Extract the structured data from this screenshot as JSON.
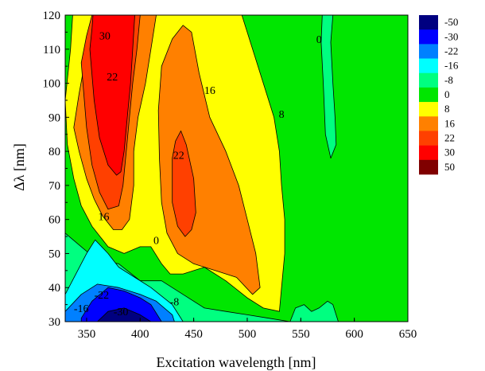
{
  "chart_data": {
    "type": "contour",
    "xlabel": "Excitation wavelength [nm]",
    "ylabel": "Δλ [nm]",
    "xlim": [
      330,
      650
    ],
    "ylim": [
      30,
      120
    ],
    "x_ticks": [
      350,
      400,
      450,
      500,
      550,
      600,
      650
    ],
    "y_ticks": [
      30,
      40,
      50,
      60,
      70,
      80,
      90,
      100,
      110,
      120
    ],
    "legend": {
      "placement": "right",
      "levels": [
        {
          "label": "-50",
          "color": "#000080"
        },
        {
          "label": "-30",
          "color": "#0000ff"
        },
        {
          "label": "-22",
          "color": "#0080ff"
        },
        {
          "label": "-16",
          "color": "#00ffff"
        },
        {
          "label": "-8",
          "color": "#00ff80"
        },
        {
          "label": "0",
          "color": "#00e600"
        },
        {
          "label": "8",
          "color": "#ffff00"
        },
        {
          "label": "16",
          "color": "#ff8000"
        },
        {
          "label": "22",
          "color": "#ff4000"
        },
        {
          "label": "30",
          "color": "#ff0000"
        },
        {
          "label": "50",
          "color": "#800000"
        }
      ]
    },
    "regions": [
      {
        "level": "0",
        "color": "#00e600",
        "points": [
          [
            330,
            120
          ],
          [
            650,
            120
          ],
          [
            650,
            30
          ],
          [
            330,
            30
          ]
        ]
      },
      {
        "level": "-8",
        "color": "#00ff80",
        "points": [
          [
            330,
            56
          ],
          [
            345,
            52
          ],
          [
            360,
            48
          ],
          [
            380,
            47
          ],
          [
            400,
            42
          ],
          [
            420,
            42
          ],
          [
            440,
            38
          ],
          [
            460,
            34
          ],
          [
            480,
            33
          ],
          [
            500,
            32
          ],
          [
            520,
            31
          ],
          [
            540,
            30
          ],
          [
            330,
            30
          ]
        ]
      },
      {
        "level": "-16",
        "color": "#00ffff",
        "points": [
          [
            330,
            38
          ],
          [
            340,
            44
          ],
          [
            350,
            50
          ],
          [
            358,
            54
          ],
          [
            370,
            50
          ],
          [
            380,
            46
          ],
          [
            395,
            43
          ],
          [
            410,
            40
          ],
          [
            430,
            35
          ],
          [
            440,
            30
          ],
          [
            330,
            30
          ]
        ]
      },
      {
        "level": "-22",
        "color": "#0080ff",
        "points": [
          [
            330,
            33
          ],
          [
            345,
            38
          ],
          [
            360,
            41
          ],
          [
            380,
            40
          ],
          [
            400,
            38
          ],
          [
            415,
            36
          ],
          [
            430,
            32
          ],
          [
            432,
            30
          ],
          [
            330,
            30
          ]
        ]
      },
      {
        "level": "-30",
        "color": "#0000ff",
        "points": [
          [
            345,
            31
          ],
          [
            355,
            36
          ],
          [
            370,
            40
          ],
          [
            385,
            39
          ],
          [
            400,
            37
          ],
          [
            410,
            35
          ],
          [
            420,
            30
          ],
          [
            345,
            30
          ]
        ]
      },
      {
        "level": "-50",
        "color": "#000080",
        "points": [
          [
            360,
            30
          ],
          [
            370,
            33
          ],
          [
            385,
            34
          ],
          [
            400,
            32
          ],
          [
            410,
            30
          ]
        ]
      },
      {
        "level": "8",
        "color": "#ffff00",
        "points": [
          [
            330,
            95
          ],
          [
            335,
            110
          ],
          [
            337,
            120
          ],
          [
            495,
            120
          ],
          [
            505,
            110
          ],
          [
            515,
            100
          ],
          [
            525,
            90
          ],
          [
            530,
            80
          ],
          [
            532,
            70
          ],
          [
            535,
            60
          ],
          [
            535,
            50
          ],
          [
            532,
            40
          ],
          [
            530,
            33
          ],
          [
            515,
            34
          ],
          [
            500,
            37
          ],
          [
            480,
            42
          ],
          [
            460,
            46
          ],
          [
            440,
            44
          ],
          [
            428,
            44
          ],
          [
            420,
            47
          ],
          [
            410,
            52
          ],
          [
            400,
            52
          ],
          [
            385,
            50
          ],
          [
            370,
            52
          ],
          [
            355,
            58
          ],
          [
            345,
            64
          ],
          [
            338,
            72
          ],
          [
            332,
            82
          ]
        ]
      },
      {
        "level": "16",
        "color": "#ff8000",
        "points": [
          [
            338,
            87
          ],
          [
            343,
            97
          ],
          [
            350,
            109
          ],
          [
            355,
            116
          ],
          [
            358,
            120
          ],
          [
            415,
            120
          ],
          [
            410,
            110
          ],
          [
            405,
            100
          ],
          [
            398,
            90
          ],
          [
            394,
            80
          ],
          [
            394,
            70
          ],
          [
            390,
            60
          ],
          [
            383,
            57
          ],
          [
            375,
            57
          ],
          [
            365,
            61
          ],
          [
            357,
            66
          ],
          [
            350,
            72
          ],
          [
            343,
            80
          ]
        ]
      },
      {
        "level": "16",
        "color": "#ff8000",
        "points": [
          [
            420,
            105
          ],
          [
            430,
            113
          ],
          [
            440,
            117
          ],
          [
            448,
            115
          ],
          [
            455,
            103
          ],
          [
            465,
            90
          ],
          [
            480,
            80
          ],
          [
            492,
            70
          ],
          [
            500,
            60
          ],
          [
            508,
            50
          ],
          [
            512,
            40
          ],
          [
            505,
            38
          ],
          [
            490,
            43
          ],
          [
            470,
            45
          ],
          [
            450,
            47
          ],
          [
            435,
            50
          ],
          [
            425,
            56
          ],
          [
            420,
            65
          ],
          [
            418,
            78
          ],
          [
            417,
            92
          ]
        ]
      },
      {
        "level": "22",
        "color": "#ff4000",
        "points": [
          [
            345,
            106
          ],
          [
            350,
            114
          ],
          [
            355,
            120
          ],
          [
            400,
            120
          ],
          [
            397,
            110
          ],
          [
            393,
            100
          ],
          [
            390,
            90
          ],
          [
            387,
            80
          ],
          [
            384,
            70
          ],
          [
            380,
            64
          ],
          [
            370,
            63
          ],
          [
            362,
            68
          ],
          [
            355,
            76
          ],
          [
            350,
            87
          ]
        ]
      },
      {
        "level": "22",
        "color": "#ff4000",
        "points": [
          [
            430,
            78
          ],
          [
            433,
            83
          ],
          [
            438,
            86
          ],
          [
            443,
            82
          ],
          [
            450,
            72
          ],
          [
            452,
            62
          ],
          [
            448,
            57
          ],
          [
            442,
            55
          ],
          [
            435,
            58
          ],
          [
            430,
            65
          ]
        ]
      },
      {
        "level": "30",
        "color": "#ff0000",
        "points": [
          [
            353,
            110
          ],
          [
            355,
            116
          ],
          [
            356,
            120
          ],
          [
            395,
            120
          ],
          [
            393,
            110
          ],
          [
            391,
            100
          ],
          [
            388,
            90
          ],
          [
            385,
            80
          ],
          [
            382,
            74
          ],
          [
            378,
            73
          ],
          [
            370,
            76
          ],
          [
            362,
            84
          ],
          [
            357,
            95
          ]
        ]
      },
      {
        "level": "-8",
        "color": "#00ff80",
        "points": [
          [
            570,
            120
          ],
          [
            580,
            120
          ],
          [
            578,
            112
          ],
          [
            580,
            100
          ],
          [
            582,
            90
          ],
          [
            583,
            82
          ],
          [
            578,
            78
          ],
          [
            573,
            85
          ],
          [
            571,
            100
          ],
          [
            569,
            112
          ]
        ]
      },
      {
        "level": "-8",
        "color": "#00ff80",
        "points": [
          [
            540,
            30
          ],
          [
            545,
            34
          ],
          [
            553,
            35
          ],
          [
            560,
            33
          ],
          [
            567,
            34
          ],
          [
            575,
            36
          ],
          [
            580,
            35
          ],
          [
            585,
            30
          ]
        ]
      }
    ],
    "contour_labels": [
      {
        "text": "30",
        "x": 367,
        "y": 114
      },
      {
        "text": "22",
        "x": 374,
        "y": 102
      },
      {
        "text": "16",
        "x": 465,
        "y": 98
      },
      {
        "text": "8",
        "x": 532,
        "y": 91
      },
      {
        "text": "0",
        "x": 567,
        "y": 113
      },
      {
        "text": "22",
        "x": 436,
        "y": 79
      },
      {
        "text": "16",
        "x": 366,
        "y": 61
      },
      {
        "text": "0",
        "x": 415,
        "y": 54
      },
      {
        "text": "-22",
        "x": 364,
        "y": 38
      },
      {
        "text": "-8",
        "x": 432,
        "y": 36
      },
      {
        "text": "-30",
        "x": 382,
        "y": 33
      },
      {
        "text": "-16",
        "x": 345,
        "y": 34
      }
    ]
  }
}
